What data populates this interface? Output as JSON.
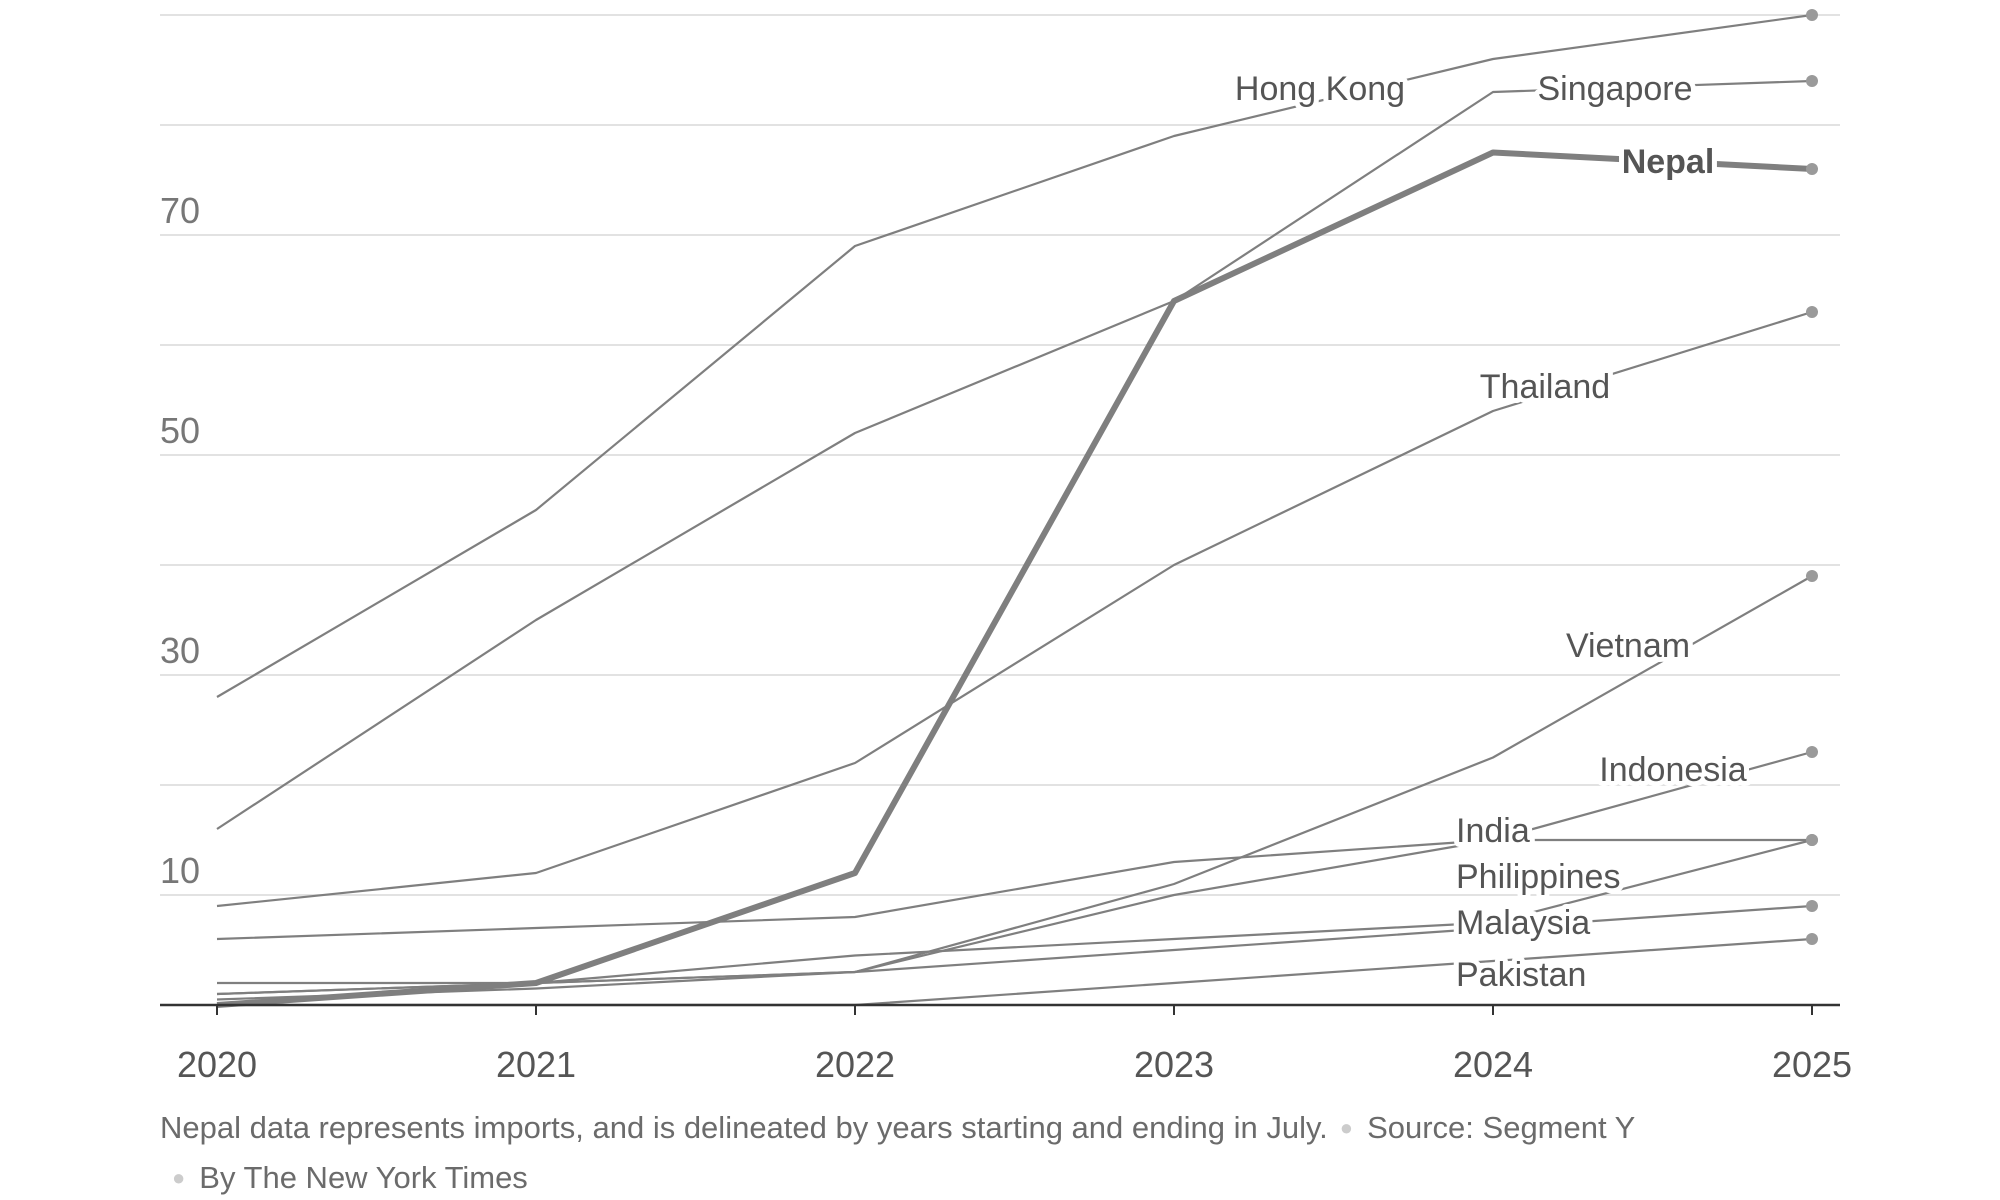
{
  "chart_data": {
    "type": "line",
    "x": [
      2020,
      2021,
      2022,
      2023,
      2024,
      2025
    ],
    "xticklabels": [
      "2020",
      "2021",
      "2022",
      "2023",
      "2024",
      "2025"
    ],
    "yticks": [
      10,
      30,
      50,
      70
    ],
    "ylim": [
      0,
      90
    ],
    "grid": true,
    "legend": "direct labels at line ends",
    "highlight_color": "#c85a3c",
    "line_color": "#7f7f7f",
    "series": [
      {
        "name": "Hong Kong",
        "values": [
          28,
          45,
          69,
          79,
          86,
          90
        ],
        "highlight": false
      },
      {
        "name": "Singapore",
        "values": [
          16,
          35,
          52,
          64,
          83,
          84
        ],
        "highlight": false
      },
      {
        "name": "Nepal",
        "values": [
          0,
          2,
          12,
          64,
          77.5,
          76
        ],
        "highlight": true
      },
      {
        "name": "Thailand",
        "values": [
          9,
          12,
          22,
          40,
          54,
          63
        ],
        "highlight": false
      },
      {
        "name": "Vietnam",
        "values": [
          0.5,
          1.5,
          3,
          11,
          22.5,
          39
        ],
        "highlight": false
      },
      {
        "name": "Indonesia",
        "values": [
          1,
          2,
          3,
          10,
          15,
          23
        ],
        "highlight": false
      },
      {
        "name": "India",
        "values": [
          6,
          7,
          8,
          13,
          15,
          15
        ],
        "highlight": false
      },
      {
        "name": "Philippines",
        "values": [
          2,
          2,
          4.5,
          6,
          7.5,
          15
        ],
        "highlight": false
      },
      {
        "name": "Malaysia",
        "values": [
          1,
          2,
          3,
          5,
          7,
          9
        ],
        "highlight": false
      },
      {
        "name": "Pakistan",
        "values": [
          0,
          0,
          0,
          2,
          4,
          6
        ],
        "highlight": false
      }
    ]
  },
  "footer": {
    "note": "Nepal data represents imports, and is delineated by years starting and ending in July.",
    "source": "Source: Segment Y",
    "credit": "By The New York Times"
  }
}
